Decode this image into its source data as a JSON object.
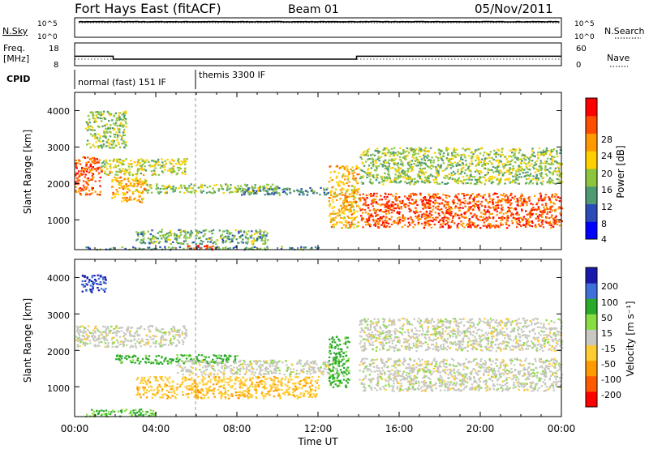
{
  "header": {
    "station": "Fort Hays East (fitACF)",
    "beam": "Beam 01",
    "date": "05/Nov/2011"
  },
  "noise_panel": {
    "left_label": "N.Sky",
    "right_label": "N.Search",
    "left_ticks": [
      "10^5",
      "10^0"
    ],
    "right_ticks": [
      "10^5",
      "10^0"
    ]
  },
  "freq_panel": {
    "left_label_line1": "Freq.",
    "left_label_line2": "[MHz]",
    "right_label": "Nave",
    "left_ticks": [
      "18",
      "8"
    ],
    "right_ticks": [
      "60",
      "0"
    ]
  },
  "cpid": {
    "label": "CPID",
    "modes": [
      "normal (fast) 151 IF",
      "themis 3300 IF"
    ]
  },
  "power_panel": {
    "ylabel": "Slant Range [km]",
    "yticks": [
      "1000",
      "2000",
      "3000",
      "4000"
    ],
    "colorbar_label": "Power [dB]",
    "colorbar_ticks": [
      "4",
      "8",
      "12",
      "16",
      "20",
      "24",
      "28"
    ],
    "colorbar_colors": [
      "#0000ff",
      "#2a4cb8",
      "#4f9a72",
      "#8cc63f",
      "#ffd000",
      "#ff9900",
      "#ff4d00",
      "#ff0000"
    ]
  },
  "velocity_panel": {
    "ylabel": "Slant Range [km]",
    "yticks": [
      "1000",
      "2000",
      "3000",
      "4000"
    ],
    "colorbar_label": "Velocity [m s⁻¹]",
    "colorbar_ticks": [
      "200",
      "100",
      "50",
      "15",
      "-15",
      "-50",
      "-100",
      "-200"
    ],
    "colorbar_colors": [
      "#1a1aaa",
      "#3f6fd8",
      "#2aaa2a",
      "#88dd44",
      "#c8c8c0",
      "#ffcc33",
      "#ff9a00",
      "#ff5a00",
      "#ff0000"
    ]
  },
  "xaxis": {
    "label": "Time UT",
    "ticks": [
      "00:00",
      "04:00",
      "08:00",
      "12:00",
      "16:00",
      "20:00",
      "00:00"
    ]
  },
  "chart_data": [
    {
      "type": "line",
      "title": "Noise (N.Sky / N.Search)",
      "x_range_hours": [
        0,
        24
      ],
      "ylim": [
        1,
        100000
      ],
      "series": [
        {
          "name": "N.Sky",
          "x": [
            0.2,
            4,
            8,
            12,
            16,
            20,
            24
          ],
          "values": [
            20000,
            20000,
            20000,
            20000,
            20000,
            20000,
            20000
          ]
        },
        {
          "name": "N.Search",
          "x": [
            0.2,
            4,
            8,
            12,
            16,
            20,
            24
          ],
          "values": [
            10000,
            10000,
            10000,
            10000,
            10000,
            10000,
            10000
          ]
        }
      ]
    },
    {
      "type": "line",
      "title": "Freq. / Nave",
      "x_range_hours": [
        0,
        24
      ],
      "series": [
        {
          "name": "Freq. [MHz]",
          "x": [
            0,
            1.9,
            1.9,
            13.9,
            13.9,
            24
          ],
          "values": [
            12,
            12,
            10.5,
            10.5,
            12,
            12
          ]
        },
        {
          "name": "Nave",
          "x": [
            0,
            24
          ],
          "values": [
            0,
            0
          ]
        }
      ]
    },
    {
      "type": "heatmap",
      "title": "Power [dB]",
      "xlabel": "Time UT",
      "ylabel": "Slant Range [km]",
      "x_range_hours": [
        0,
        24
      ],
      "ylim": [
        180,
        4500
      ],
      "zlim": [
        0,
        32
      ],
      "cpid_changes_hours": [
        5.8
      ],
      "bands": [
        {
          "t": [
            0,
            1.3
          ],
          "r": [
            1700,
            2750
          ],
          "power": 26
        },
        {
          "t": [
            1.3,
            5.5
          ],
          "r": [
            2250,
            2700
          ],
          "power": 16
        },
        {
          "t": [
            1.8,
            3.5
          ],
          "r": [
            1500,
            2200
          ],
          "power": 20
        },
        {
          "t": [
            3.5,
            10
          ],
          "r": [
            1750,
            2000
          ],
          "power": 14
        },
        {
          "t": [
            8,
            12.5
          ],
          "r": [
            1700,
            1900
          ],
          "power": 9
        },
        {
          "t": [
            3,
            9.5
          ],
          "r": [
            350,
            750
          ],
          "power": 12
        },
        {
          "t": [
            5.5,
            7
          ],
          "r": [
            200,
            350
          ],
          "power": 28
        },
        {
          "t": [
            0.5,
            12
          ],
          "r": [
            200,
            280
          ],
          "power": 10
        },
        {
          "t": [
            12.5,
            14
          ],
          "r": [
            800,
            2500
          ],
          "power": 20
        },
        {
          "t": [
            14,
            24
          ],
          "r": [
            800,
            1750
          ],
          "power": 26
        },
        {
          "t": [
            14,
            24
          ],
          "r": [
            2000,
            3000
          ],
          "power": 14
        },
        {
          "t": [
            0.5,
            2.5
          ],
          "r": [
            3000,
            4000
          ],
          "power": 14
        }
      ]
    },
    {
      "type": "heatmap",
      "title": "Velocity [m s⁻¹]",
      "xlabel": "Time UT",
      "ylabel": "Slant Range [km]",
      "x_range_hours": [
        0,
        24
      ],
      "ylim": [
        180,
        4500
      ],
      "zlim": [
        -250,
        250
      ],
      "bands": [
        {
          "t": [
            0,
            5.5
          ],
          "r": [
            2100,
            2700
          ],
          "vel": 0
        },
        {
          "t": [
            2,
            8
          ],
          "r": [
            1650,
            1900
          ],
          "vel": 60
        },
        {
          "t": [
            5,
            13
          ],
          "r": [
            1350,
            1750
          ],
          "vel": 0
        },
        {
          "t": [
            3,
            12
          ],
          "r": [
            700,
            1300
          ],
          "vel": -40
        },
        {
          "t": [
            12.5,
            13.5
          ],
          "r": [
            1000,
            2400
          ],
          "vel": 60
        },
        {
          "t": [
            14,
            24
          ],
          "r": [
            900,
            1800
          ],
          "vel": 0
        },
        {
          "t": [
            14,
            24
          ],
          "r": [
            2000,
            2900
          ],
          "vel": 0
        },
        {
          "t": [
            0.3,
            1.5
          ],
          "r": [
            3600,
            4100
          ],
          "vel": 200
        },
        {
          "t": [
            0.5,
            4
          ],
          "r": [
            200,
            400
          ],
          "vel": 50
        }
      ]
    }
  ]
}
